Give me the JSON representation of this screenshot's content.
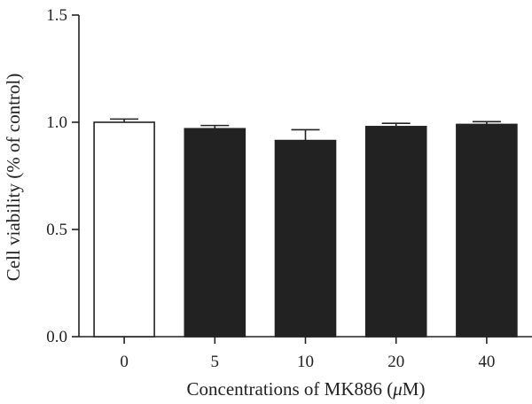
{
  "chart_data": {
    "type": "bar",
    "title": "",
    "xlabel": "Concentrations of MK886 (μM)",
    "xlabel_parts": [
      "Concentrations of MK886 (",
      "μ",
      "M)"
    ],
    "ylabel": "Cell viability (% of control)",
    "ylim": [
      0,
      1.5
    ],
    "yticks": [
      0.0,
      0.5,
      1.0,
      1.5
    ],
    "ytick_labels": [
      "0.0",
      "0.5",
      "1.0",
      "1.5"
    ],
    "categories": [
      "0",
      "5",
      "10",
      "20",
      "40"
    ],
    "values": [
      1.0,
      0.97,
      0.915,
      0.98,
      0.99
    ],
    "errors": [
      0.015,
      0.015,
      0.05,
      0.015,
      0.013
    ],
    "bar_fills": [
      "#ffffff",
      "#222222",
      "#222222",
      "#222222",
      "#222222"
    ],
    "bar_stroke": "#222222",
    "grid": false,
    "legend": "none"
  }
}
